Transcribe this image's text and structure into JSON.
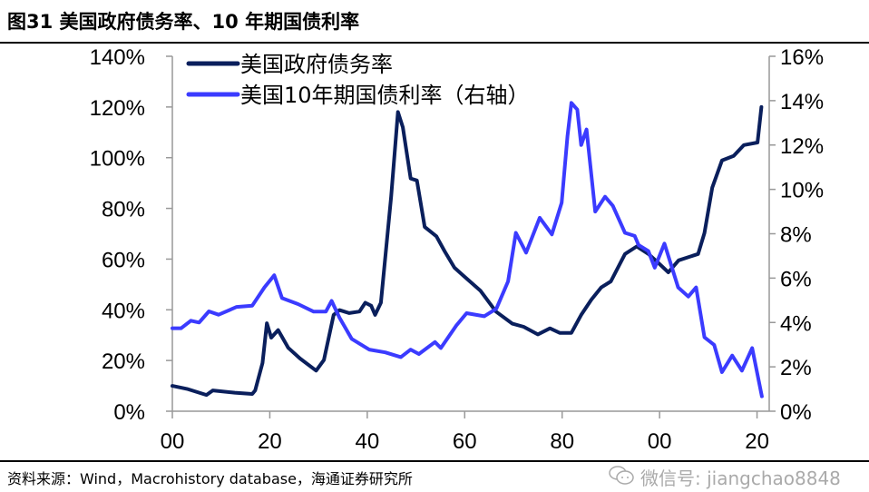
{
  "title": "图31 美国政府债务率、10 年期国债利率",
  "source": "资料来源：Wind，Macrohistory database，海通证券研究所",
  "watermark": "微信号: jiangchao8848",
  "chart_data": {
    "type": "line",
    "title": "图31 美国政府债务率、10 年期国债利率",
    "xlim": [
      1900,
      2022.5
    ],
    "x_ticks": [
      1900,
      1920,
      1940,
      1960,
      1980,
      2000,
      2020
    ],
    "x_tick_labels": [
      "00",
      "20",
      "40",
      "60",
      "80",
      "00",
      "20"
    ],
    "ylim_left": [
      0,
      140
    ],
    "y_left_ticks": [
      0,
      20,
      40,
      60,
      80,
      100,
      120,
      140
    ],
    "y_left_tick_labels": [
      "0%",
      "20%",
      "40%",
      "60%",
      "80%",
      "100%",
      "120%",
      "140%"
    ],
    "ylim_right": [
      0,
      16
    ],
    "y_right_ticks": [
      0,
      2,
      4,
      6,
      8,
      10,
      12,
      14,
      16
    ],
    "y_right_tick_labels": [
      "0%",
      "2%",
      "4%",
      "6%",
      "8%",
      "10%",
      "12%",
      "14%",
      "16%"
    ],
    "grid": false,
    "legend_position": "top-left",
    "series": [
      {
        "name": "美国政府债务率",
        "axis": "left",
        "color": "#0a1f5c",
        "points": [
          [
            1900,
            10.0
          ],
          [
            1903,
            8.8
          ],
          [
            1907,
            6.4
          ],
          [
            1908.3,
            8.2
          ],
          [
            1912.8,
            7.3
          ],
          [
            1916.4,
            6.8
          ],
          [
            1917,
            8.2
          ],
          [
            1918.5,
            19
          ],
          [
            1919.4,
            34.7
          ],
          [
            1920.3,
            29
          ],
          [
            1921.7,
            32
          ],
          [
            1923.8,
            25
          ],
          [
            1926.2,
            20.8
          ],
          [
            1929.5,
            16
          ],
          [
            1931.1,
            20.2
          ],
          [
            1933.1,
            38
          ],
          [
            1934.3,
            39.9
          ],
          [
            1936.3,
            38.7
          ],
          [
            1938.4,
            39.3
          ],
          [
            1939.6,
            42.8
          ],
          [
            1940.8,
            41.6
          ],
          [
            1941.6,
            38
          ],
          [
            1942.8,
            42.8
          ],
          [
            1944.9,
            84.6
          ],
          [
            1946.3,
            118
          ],
          [
            1947.3,
            112
          ],
          [
            1948.9,
            91.8
          ],
          [
            1950.2,
            91
          ],
          [
            1951.8,
            72.7
          ],
          [
            1954.2,
            69
          ],
          [
            1955.9,
            63
          ],
          [
            1957.9,
            56.6
          ],
          [
            1960,
            53
          ],
          [
            1963.2,
            47.6
          ],
          [
            1966.4,
            39.3
          ],
          [
            1969.8,
            34.5
          ],
          [
            1972.1,
            33.3
          ],
          [
            1975,
            30.3
          ],
          [
            1977.5,
            32.7
          ],
          [
            1979.5,
            30.9
          ],
          [
            1981.9,
            30.9
          ],
          [
            1983.9,
            38
          ],
          [
            1986,
            44
          ],
          [
            1988,
            48.8
          ],
          [
            1990,
            51.2
          ],
          [
            1992.9,
            62
          ],
          [
            1995.3,
            65
          ],
          [
            1997.7,
            62
          ],
          [
            1999.8,
            58.4
          ],
          [
            2001.8,
            54.8
          ],
          [
            2003.9,
            59.5
          ],
          [
            2007.9,
            62
          ],
          [
            2009.2,
            70.3
          ],
          [
            2010.8,
            88.2
          ],
          [
            2012.8,
            98.9
          ],
          [
            2015.2,
            100.7
          ],
          [
            2017.3,
            105
          ],
          [
            2020.1,
            106
          ],
          [
            2020.9,
            120
          ]
        ]
      },
      {
        "name": "美国10年期国债利率（右轴）",
        "axis": "right",
        "color": "#3b3bff",
        "points": [
          [
            1900,
            3.74
          ],
          [
            1901.8,
            3.74
          ],
          [
            1903.8,
            4.08
          ],
          [
            1905.5,
            4.0
          ],
          [
            1907.5,
            4.5
          ],
          [
            1909.5,
            4.35
          ],
          [
            1913.2,
            4.7
          ],
          [
            1916.4,
            4.76
          ],
          [
            1918.9,
            5.58
          ],
          [
            1920.9,
            6.13
          ],
          [
            1922.5,
            5.1
          ],
          [
            1925.8,
            4.83
          ],
          [
            1929,
            4.49
          ],
          [
            1931.5,
            4.49
          ],
          [
            1932.7,
            4.97
          ],
          [
            1934.3,
            4.22
          ],
          [
            1936.8,
            3.26
          ],
          [
            1940.4,
            2.78
          ],
          [
            1943.7,
            2.65
          ],
          [
            1946.9,
            2.44
          ],
          [
            1948.9,
            2.78
          ],
          [
            1950.6,
            2.58
          ],
          [
            1953.9,
            3.12
          ],
          [
            1955.1,
            2.85
          ],
          [
            1958.3,
            3.87
          ],
          [
            1960.4,
            4.42
          ],
          [
            1964,
            4.28
          ],
          [
            1966.5,
            4.62
          ],
          [
            1968.9,
            5.85
          ],
          [
            1970.5,
            8.04
          ],
          [
            1972.6,
            7.15
          ],
          [
            1975.4,
            8.72
          ],
          [
            1977.9,
            7.97
          ],
          [
            1979.9,
            9.4
          ],
          [
            1981.1,
            12.4
          ],
          [
            1981.9,
            13.9
          ],
          [
            1983.1,
            13.6
          ],
          [
            1983.9,
            12.0
          ],
          [
            1985,
            12.7
          ],
          [
            1986.8,
            9.0
          ],
          [
            1988.8,
            9.67
          ],
          [
            1990.4,
            9.26
          ],
          [
            1992.9,
            8.04
          ],
          [
            1994.9,
            7.9
          ],
          [
            1995.7,
            7.49
          ],
          [
            1997.7,
            7.22
          ],
          [
            1999,
            6.47
          ],
          [
            2001,
            7.56
          ],
          [
            2003.8,
            5.58
          ],
          [
            2005.9,
            5.17
          ],
          [
            2007.5,
            5.58
          ],
          [
            2009.2,
            3.33
          ],
          [
            2011.2,
            2.99
          ],
          [
            2012.8,
            1.76
          ],
          [
            2014.9,
            2.51
          ],
          [
            2016.9,
            1.83
          ],
          [
            2019,
            2.85
          ],
          [
            2021,
            0.67
          ]
        ]
      }
    ]
  }
}
